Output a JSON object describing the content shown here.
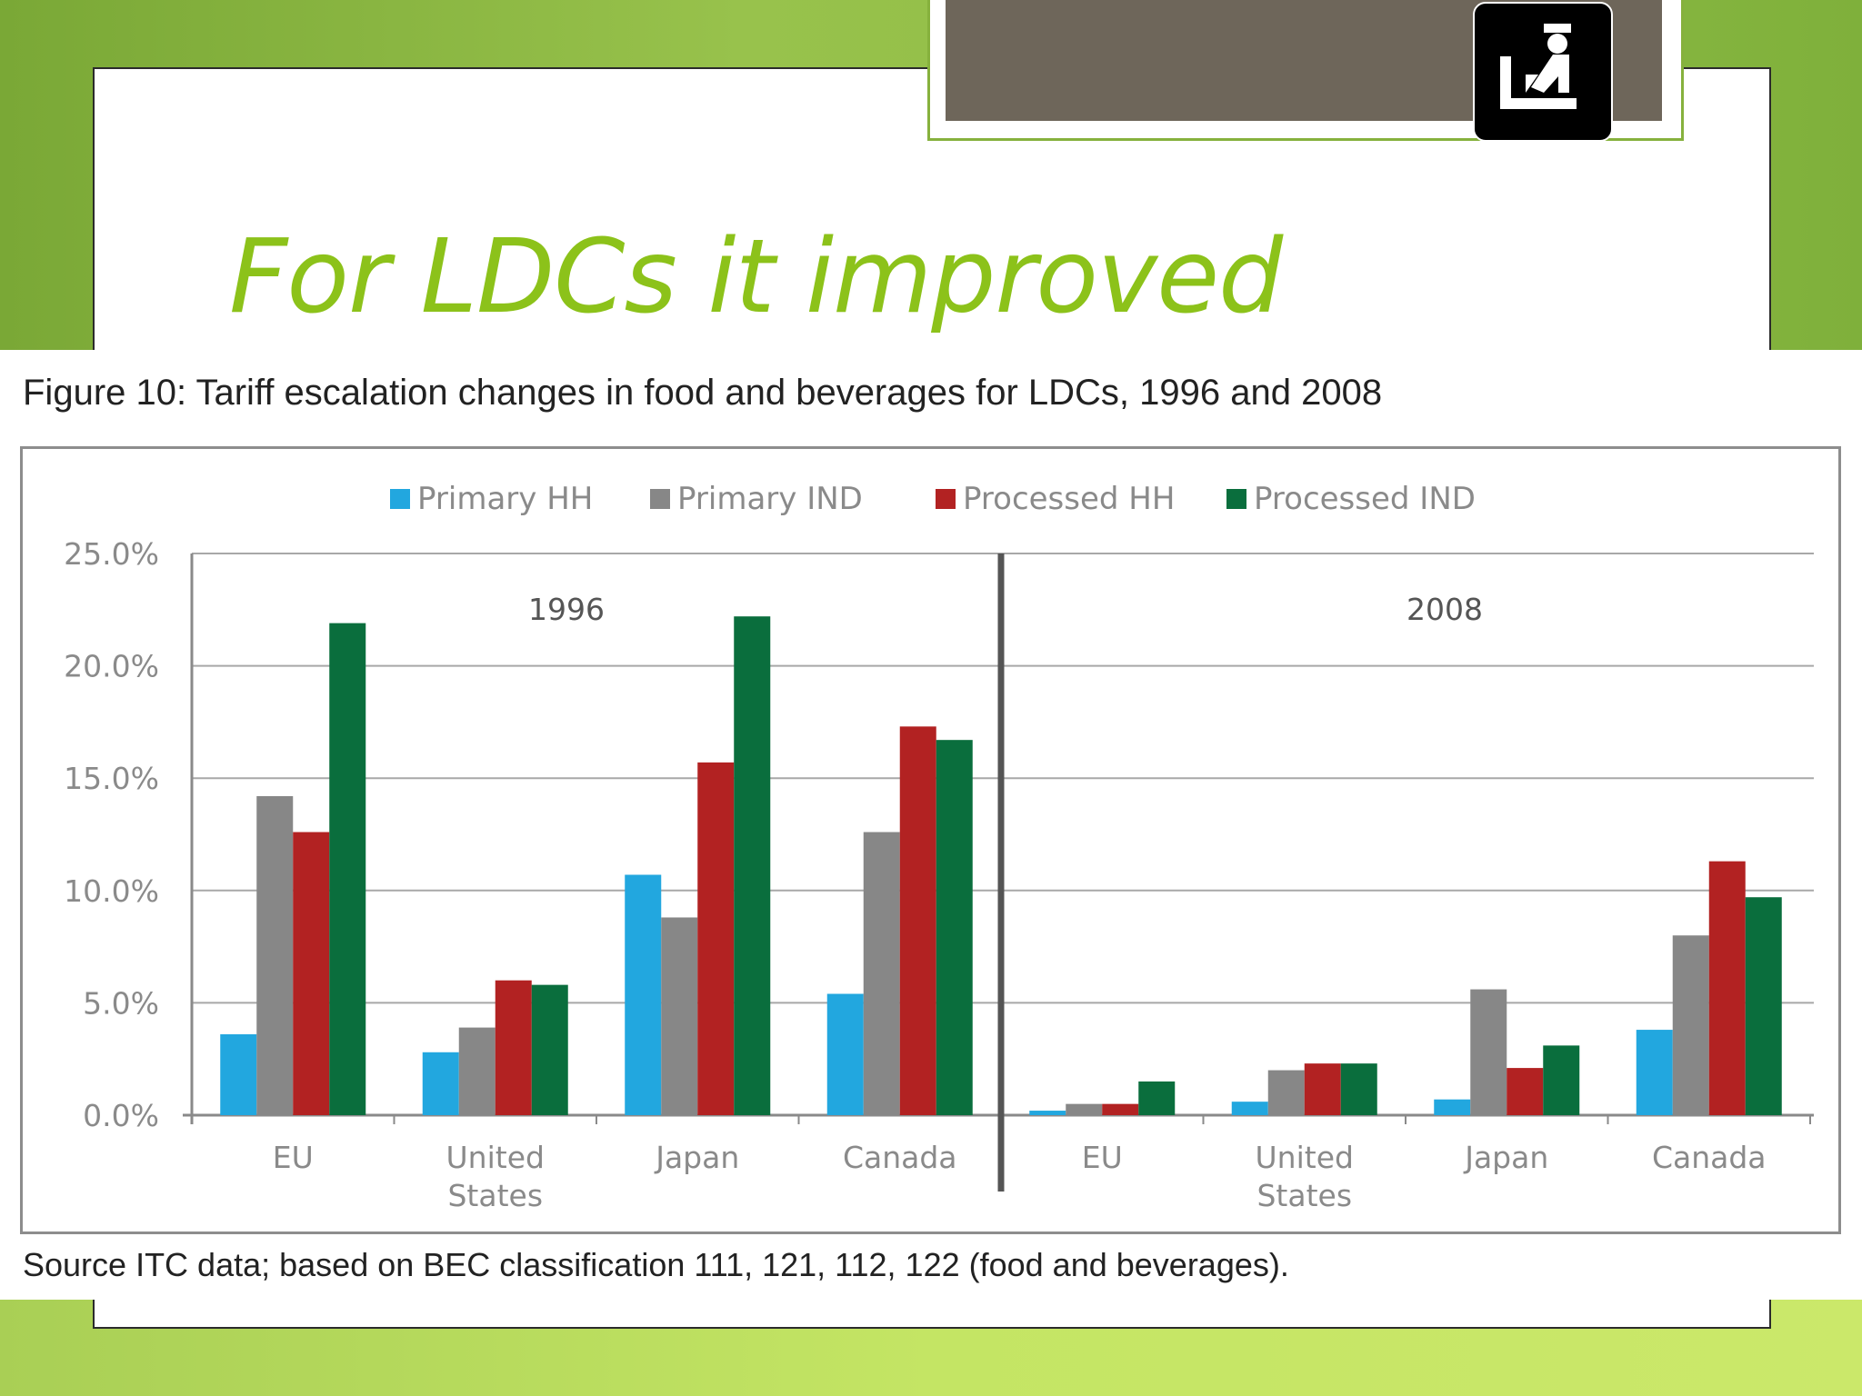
{
  "slide": {
    "title": "For LDCs it improved",
    "accent_color": "#8cc21a",
    "icon": "customs-officer-icon"
  },
  "figure": {
    "caption": "Figure 10: Tariff escalation changes in food and beverages for LDCs, 1996 and 2008",
    "source": "Source ITC data; based on BEC classification 111, 121, 112, 122 (food and beverages)."
  },
  "chart_data": {
    "type": "bar",
    "title": "",
    "xlabel": "",
    "ylabel": "",
    "ylim": [
      0,
      25
    ],
    "yticks": [
      "0.0%",
      "5.0%",
      "10.0%",
      "15.0%",
      "20.0%",
      "25.0%"
    ],
    "grid": true,
    "legend_position": "top-center",
    "panels": [
      {
        "label": "1996",
        "categories": [
          "EU",
          "United States",
          "Japan",
          "Canada"
        ],
        "series": [
          {
            "name": "Primary HH",
            "color": "#22a7df",
            "values": [
              3.6,
              2.8,
              10.7,
              5.4
            ]
          },
          {
            "name": "Primary IND",
            "color": "#878787",
            "values": [
              14.2,
              3.9,
              8.8,
              12.6
            ]
          },
          {
            "name": "Processed HH",
            "color": "#b22222",
            "values": [
              12.6,
              6.0,
              15.7,
              17.3
            ]
          },
          {
            "name": "Processed IND",
            "color": "#0a6e3d",
            "values": [
              21.9,
              5.8,
              22.2,
              16.7
            ]
          }
        ]
      },
      {
        "label": "2008",
        "categories": [
          "EU",
          "United States",
          "Japan",
          "Canada"
        ],
        "series": [
          {
            "name": "Primary HH",
            "color": "#22a7df",
            "values": [
              0.2,
              0.6,
              0.7,
              3.8
            ]
          },
          {
            "name": "Primary IND",
            "color": "#878787",
            "values": [
              0.5,
              2.0,
              5.6,
              8.0
            ]
          },
          {
            "name": "Processed HH",
            "color": "#b22222",
            "values": [
              0.5,
              2.3,
              2.1,
              11.3
            ]
          },
          {
            "name": "Processed IND",
            "color": "#0a6e3d",
            "values": [
              1.5,
              2.3,
              3.1,
              9.7
            ]
          }
        ]
      }
    ]
  }
}
